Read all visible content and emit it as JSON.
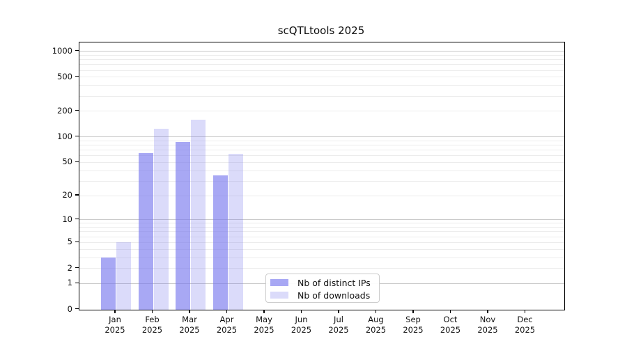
{
  "chart_data": {
    "type": "bar",
    "title": "scQTLtools 2025",
    "categories": [
      "Jan",
      "Feb",
      "Mar",
      "Apr",
      "May",
      "Jun",
      "Jul",
      "Aug",
      "Sep",
      "Oct",
      "Nov",
      "Dec"
    ],
    "category_year": "2025",
    "series": [
      {
        "name": "Nb of distinct IPs",
        "color": "rgba(122,122,238,0.65)",
        "color_hex_on_white": "#a8a8f4",
        "values": [
          3,
          65,
          87,
          35,
          0,
          0,
          0,
          0,
          0,
          0,
          0,
          0
        ]
      },
      {
        "name": "Nb of downloads",
        "color": "rgba(122,122,238,0.27)",
        "color_hex_on_white": "#dbdbfa",
        "values": [
          5,
          125,
          160,
          63,
          0,
          0,
          0,
          0,
          0,
          0,
          0,
          0
        ]
      }
    ],
    "xlabel": "",
    "ylabel": "",
    "y_ticks": [
      0,
      1,
      2,
      5,
      10,
      20,
      50,
      100,
      200,
      500,
      1000
    ],
    "y_scale": "log10(value+1) on linear axis",
    "ylim": [
      0,
      1266
    ],
    "grid": "on",
    "major_grid_values": [
      1,
      10,
      100,
      1000
    ],
    "minor_grid_values": [
      2,
      3,
      4,
      5,
      6,
      7,
      8,
      9,
      20,
      30,
      40,
      50,
      60,
      70,
      80,
      90,
      200,
      300,
      400,
      500,
      600,
      700,
      800,
      900
    ],
    "legend": {
      "position": "lower center"
    },
    "colors": {
      "axis": "#000000",
      "grid_major": "#c9c9c9",
      "grid_minor": "#ececec",
      "background": "#ffffff"
    }
  }
}
